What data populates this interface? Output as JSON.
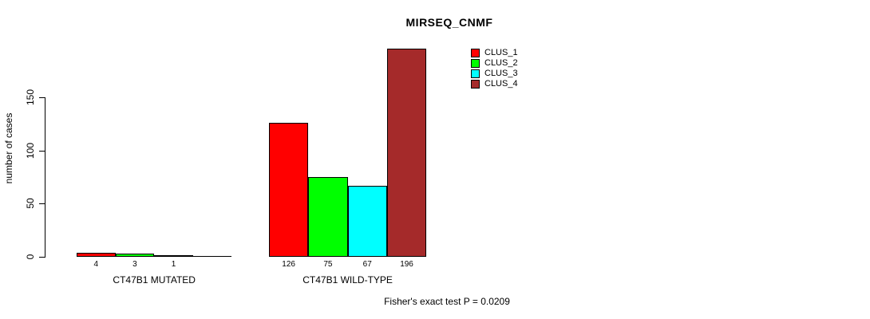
{
  "chart_data": {
    "type": "bar",
    "title": "MIRSEQ_CNMF",
    "ylabel": "number of cases",
    "xlabel": "",
    "ylim": [
      0,
      150
    ],
    "yticks": [
      0,
      50,
      100,
      150
    ],
    "grid": false,
    "legend_position": "top-right",
    "annotation": "Fisher's exact test P = 0.0209",
    "series": [
      {
        "name": "CLUS_1",
        "color": "#FF0000"
      },
      {
        "name": "CLUS_2",
        "color": "#00FF00"
      },
      {
        "name": "CLUS_3",
        "color": "#00FFFF"
      },
      {
        "name": "CLUS_4",
        "color": "#A52A2A"
      }
    ],
    "groups": [
      {
        "label": "CT47B1 MUTATED",
        "values": [
          4,
          3,
          1,
          0
        ],
        "bar_labels": [
          "4",
          "3",
          "1",
          ""
        ]
      },
      {
        "label": "CT47B1 WILD-TYPE",
        "values": [
          126,
          75,
          67,
          196
        ],
        "bar_labels": [
          "126",
          "75",
          "67",
          "196"
        ]
      }
    ]
  }
}
